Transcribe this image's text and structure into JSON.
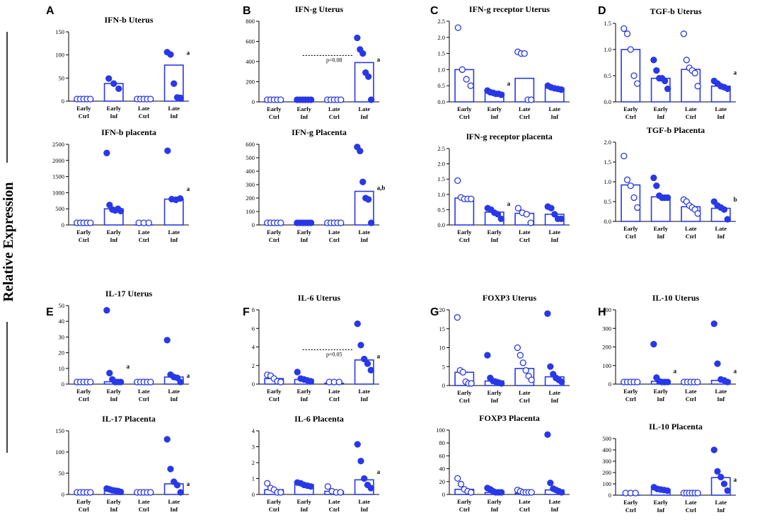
{
  "figure": {
    "ylabel": "Relative Expression",
    "colors": {
      "marker": "#2838e8",
      "axis": "#000000",
      "sigline": "#000000"
    }
  },
  "chart_data": [
    {
      "id": "A1",
      "panel": "A",
      "type": "bar",
      "title": "IFN-b Uterus",
      "ylim": [
        0,
        150
      ],
      "yticks": [
        0,
        50,
        100,
        150
      ],
      "categories": [
        [
          "Early",
          "Ctrl"
        ],
        [
          "Early",
          "Inf"
        ],
        [
          "Late",
          "Ctrl"
        ],
        [
          "Late",
          "Inf"
        ]
      ],
      "values": [
        0,
        38,
        0,
        78
      ],
      "points": [
        [
          0,
          0,
          0,
          0,
          0
        ],
        [
          49,
          38,
          27
        ],
        [
          0,
          0,
          0,
          0,
          0
        ],
        [
          106,
          101,
          38,
          8,
          7
        ]
      ],
      "annotations": [
        {
          "cat": 3,
          "text": "a",
          "y": 100
        }
      ]
    },
    {
      "id": "A2",
      "panel": "",
      "type": "bar",
      "title": "IFN-b placenta",
      "ylim": [
        0,
        2500
      ],
      "yticks": [
        0,
        500,
        1000,
        1500,
        2000,
        2500
      ],
      "categories": [
        [
          "Early",
          "Ctrl"
        ],
        [
          "Early",
          "Inf"
        ],
        [
          "Late",
          "Ctrl"
        ],
        [
          "Late",
          "Inf"
        ]
      ],
      "values": [
        0,
        500,
        0,
        800
      ],
      "points": [
        [
          0,
          0,
          0,
          0,
          0
        ],
        [
          2230,
          620,
          480,
          450,
          500,
          430
        ],
        [
          0,
          0,
          0
        ],
        [
          2300,
          800,
          780,
          820
        ]
      ],
      "annotations": [
        {
          "cat": 3,
          "text": "a",
          "y": 1050
        }
      ]
    },
    {
      "id": "B1",
      "panel": "B",
      "type": "bar",
      "title": "IFN-g Uterus",
      "ylim": [
        0,
        800
      ],
      "yticks": [
        0,
        200,
        400,
        600,
        800
      ],
      "categories": [
        [
          "Early",
          "Ctrl"
        ],
        [
          "Early",
          "Inf"
        ],
        [
          "Late",
          "Ctrl"
        ],
        [
          "Late",
          "Inf"
        ]
      ],
      "values": [
        0,
        0,
        0,
        390
      ],
      "points": [
        [
          0,
          0,
          0,
          0,
          0
        ],
        [
          0,
          0,
          0,
          0,
          0,
          0
        ],
        [
          0,
          0,
          0,
          0,
          0
        ],
        [
          635,
          520,
          480,
          290,
          250,
          10
        ]
      ],
      "annotations": [
        {
          "cat": 3,
          "text": "a",
          "y": 400
        }
      ],
      "sig": {
        "from": 1,
        "to": 3,
        "y": 460,
        "text": "p=0.08"
      }
    },
    {
      "id": "B2",
      "panel": "",
      "type": "bar",
      "title": "IFN-g Placenta",
      "ylim": [
        0,
        600
      ],
      "yticks": [
        0,
        100,
        200,
        300,
        400,
        500,
        600
      ],
      "categories": [
        [
          "Early",
          "Ctrl"
        ],
        [
          "Early",
          "Inf"
        ],
        [
          "Late",
          "Ctrl"
        ],
        [
          "Late",
          "Inf"
        ]
      ],
      "values": [
        0,
        0,
        0,
        250
      ],
      "points": [
        [
          0,
          0,
          0,
          0,
          0
        ],
        [
          0,
          0,
          0,
          0,
          0,
          0
        ],
        [
          0,
          0,
          0,
          0,
          0
        ],
        [
          580,
          550,
          320,
          200,
          190,
          10
        ]
      ],
      "annotations": [
        {
          "cat": 3,
          "text": "a,b",
          "y": 260
        }
      ]
    },
    {
      "id": "C1",
      "panel": "C",
      "type": "bar",
      "title": "IFN-g receptor Uterus",
      "ylim": [
        0,
        2.5
      ],
      "yticks": [
        0,
        0.5,
        1.0,
        1.5,
        2.0,
        2.5
      ],
      "categories": [
        [
          "Early",
          "Ctrl"
        ],
        [
          "Early",
          "Inf"
        ],
        [
          "Late",
          "Ctrl"
        ],
        [
          "Late",
          "Inf"
        ]
      ],
      "values": [
        1.0,
        0.28,
        0.73,
        0.43
      ],
      "points": [
        [
          2.3,
          1.0,
          0.7,
          0.5
        ],
        [
          0.35,
          0.3,
          0.28,
          0.25,
          0.25,
          0.22
        ],
        [
          1.55,
          1.5,
          1.5,
          0.02,
          0.02
        ],
        [
          0.5,
          0.45,
          0.42,
          0.4,
          0.38
        ]
      ],
      "annotations": [
        {
          "cat": 1,
          "text": "a",
          "y": 0.5
        }
      ]
    },
    {
      "id": "C2",
      "panel": "",
      "type": "bar",
      "title": "lFN-g receptor placenta",
      "ylim": [
        0,
        2.5
      ],
      "yticks": [
        0,
        0.5,
        1.0,
        1.5,
        2.0,
        2.5
      ],
      "categories": [
        [
          "Early",
          "Ctrl"
        ],
        [
          "Early",
          "Inf"
        ],
        [
          "Late",
          "Ctrl"
        ],
        [
          "Late",
          "Inf"
        ]
      ],
      "values": [
        0.88,
        0.42,
        0.38,
        0.35
      ],
      "points": [
        [
          1.45,
          0.9,
          0.85,
          0.85,
          0.85
        ],
        [
          0.55,
          0.5,
          0.4,
          0.35,
          0.2
        ],
        [
          0.55,
          0.4,
          0.35,
          0.02
        ],
        [
          0.6,
          0.55,
          0.35,
          0.2,
          0.2
        ]
      ],
      "annotations": [
        {
          "cat": 1,
          "text": "a",
          "y": 0.62
        }
      ]
    },
    {
      "id": "D1",
      "panel": "D",
      "type": "bar",
      "title": "TGF-b Uterus",
      "ylim": [
        0,
        1.5
      ],
      "yticks": [
        0,
        0.5,
        1.0,
        1.5
      ],
      "categories": [
        [
          "Early",
          "Ctrl"
        ],
        [
          "Early",
          "Inf"
        ],
        [
          "Late",
          "Ctrl"
        ],
        [
          "Late",
          "Inf"
        ]
      ],
      "values": [
        1.0,
        0.45,
        0.62,
        0.3
      ],
      "points": [
        [
          1.4,
          1.3,
          1.0,
          0.5,
          0.35
        ],
        [
          0.8,
          0.6,
          0.45,
          0.45,
          0.4,
          0.25
        ],
        [
          1.3,
          0.8,
          0.65,
          0.6,
          0.55,
          0.3
        ],
        [
          0.4,
          0.35,
          0.3,
          0.28,
          0.25
        ]
      ],
      "annotations": [
        {
          "cat": 3,
          "text": "a",
          "y": 0.52
        }
      ]
    },
    {
      "id": "D2",
      "panel": "",
      "type": "bar",
      "title": "TGF-b Placenta",
      "ylim": [
        0,
        2.0
      ],
      "yticks": [
        0,
        0.5,
        1.0,
        1.5,
        2.0
      ],
      "categories": [
        [
          "Early",
          "Ctrl"
        ],
        [
          "Early",
          "Inf"
        ],
        [
          "Late",
          "Ctrl"
        ],
        [
          "Late",
          "Inf"
        ]
      ],
      "values": [
        0.92,
        0.62,
        0.37,
        0.33
      ],
      "points": [
        [
          1.65,
          1.05,
          0.9,
          0.6,
          0.35
        ],
        [
          1.1,
          0.9,
          0.65,
          0.6,
          0.6,
          0.6
        ],
        [
          0.55,
          0.5,
          0.4,
          0.35,
          0.3,
          0.2
        ],
        [
          0.5,
          0.4,
          0.35,
          0.3,
          0.05
        ]
      ],
      "annotations": [
        {
          "cat": 3,
          "text": "b",
          "y": 0.5
        }
      ]
    },
    {
      "id": "E1",
      "panel": "E",
      "type": "bar",
      "title": "IL-17 Uterus",
      "ylim": [
        0,
        50
      ],
      "yticks": [
        0,
        10,
        20,
        30,
        40,
        50
      ],
      "categories": [
        [
          "Early",
          "Ctrl"
        ],
        [
          "Early",
          "Inf"
        ],
        [
          "Late",
          "Ctrl"
        ],
        [
          "Late",
          "Inf"
        ]
      ],
      "values": [
        0,
        1.5,
        0,
        4.5
      ],
      "points": [
        [
          0,
          0,
          0,
          0,
          0
        ],
        [
          47,
          7,
          3,
          1,
          0.5,
          0.3
        ],
        [
          0,
          0,
          0,
          0,
          0
        ],
        [
          28,
          6,
          4.5,
          4,
          0.3
        ]
      ],
      "annotations": [
        {
          "cat": 1,
          "text": "a",
          "y": 10
        },
        {
          "cat": 3,
          "text": "a",
          "y": 4
        }
      ]
    },
    {
      "id": "E2",
      "panel": "",
      "type": "bar",
      "title": "IL-17 Placenta",
      "ylim": [
        0,
        150
      ],
      "yticks": [
        0,
        50,
        100,
        150
      ],
      "categories": [
        [
          "Early",
          "Ctrl"
        ],
        [
          "Early",
          "Inf"
        ],
        [
          "Late",
          "Ctrl"
        ],
        [
          "Late",
          "Inf"
        ]
      ],
      "values": [
        0,
        8,
        0,
        25
      ],
      "points": [
        [
          0,
          0,
          0,
          0,
          0
        ],
        [
          14,
          12,
          10,
          9,
          8,
          6
        ],
        [
          0,
          0,
          0,
          0,
          0
        ],
        [
          130,
          60,
          30,
          22,
          5
        ]
      ],
      "annotations": [
        {
          "cat": 3,
          "text": "a",
          "y": 20
        }
      ]
    },
    {
      "id": "F1",
      "panel": "F",
      "type": "bar",
      "title": "IL-6 Uterus",
      "ylim": [
        0,
        8
      ],
      "yticks": [
        0,
        2,
        4,
        6,
        8
      ],
      "categories": [
        [
          "Early",
          "Ctrl"
        ],
        [
          "Early",
          "Inf"
        ],
        [
          "Late",
          "Ctrl"
        ],
        [
          "Late",
          "Inf"
        ]
      ],
      "values": [
        0.6,
        0.5,
        0.1,
        2.6
      ],
      "points": [
        [
          1.0,
          0.9,
          0.6,
          0.3,
          0.2
        ],
        [
          1.3,
          0.6,
          0.5,
          0.4,
          0.3
        ],
        [
          0.2,
          0.15,
          0.1
        ],
        [
          6.5,
          4.2,
          2.7,
          2.2,
          1.5
        ]
      ],
      "annotations": [
        {
          "cat": 3,
          "text": "a",
          "y": 2.8
        }
      ],
      "sig": {
        "from": 1,
        "to": 3,
        "y": 3.7,
        "text": "p=0.05"
      }
    },
    {
      "id": "F2",
      "panel": "",
      "type": "bar",
      "title": "IL-6 Placenta",
      "ylim": [
        0,
        4
      ],
      "yticks": [
        0,
        1,
        2,
        3,
        4
      ],
      "categories": [
        [
          "Early",
          "Ctrl"
        ],
        [
          "Early",
          "Inf"
        ],
        [
          "Late",
          "Ctrl"
        ],
        [
          "Late",
          "Inf"
        ]
      ],
      "values": [
        0.3,
        0.62,
        0.2,
        0.92
      ],
      "points": [
        [
          0.7,
          0.4,
          0.3,
          0.1,
          0.05
        ],
        [
          0.75,
          0.7,
          0.6,
          0.55,
          0.5
        ],
        [
          0.5,
          0.2,
          0.1,
          0.05
        ],
        [
          3.15,
          2.1,
          1.0,
          0.6,
          0.4
        ]
      ],
      "annotations": [
        {
          "cat": 3,
          "text": "a",
          "y": 1.3
        }
      ]
    },
    {
      "id": "G1",
      "panel": "G",
      "type": "bar",
      "title": "FOXP3 Uterus",
      "ylim": [
        0,
        20
      ],
      "yticks": [
        0,
        5,
        10,
        15,
        20
      ],
      "categories": [
        [
          "Early",
          "Ctrl"
        ],
        [
          "Early",
          "Inf"
        ],
        [
          "Late",
          "Ctrl"
        ],
        [
          "Late",
          "Inf"
        ]
      ],
      "values": [
        3.5,
        1.2,
        4.5,
        2.3
      ],
      "points": [
        [
          18,
          4,
          3.5,
          1,
          0.5,
          0.3
        ],
        [
          8,
          2,
          1.2,
          1,
          0.8,
          0.5
        ],
        [
          10,
          8,
          6,
          4,
          2.5,
          1.5
        ],
        [
          19,
          5,
          3,
          2,
          1.5,
          1
        ]
      ],
      "annotations": []
    },
    {
      "id": "G2",
      "panel": "",
      "type": "bar",
      "title": "FOXP3 Placenta",
      "ylim": [
        0,
        100
      ],
      "yticks": [
        0,
        20,
        40,
        60,
        80,
        100
      ],
      "categories": [
        [
          "Early",
          "Ctrl"
        ],
        [
          "Early",
          "Inf"
        ],
        [
          "Late",
          "Ctrl"
        ],
        [
          "Late",
          "Inf"
        ]
      ],
      "values": [
        8,
        3,
        2,
        7
      ],
      "points": [
        [
          25,
          16,
          8,
          5,
          3
        ],
        [
          10,
          8,
          5,
          3,
          2,
          1
        ],
        [
          7,
          5,
          3,
          2,
          1,
          0.5
        ],
        [
          93,
          18,
          9,
          7,
          5,
          3
        ]
      ],
      "annotations": []
    },
    {
      "id": "H1",
      "panel": "H",
      "type": "bar",
      "title": "IL-10 Uterus",
      "ylim": [
        0,
        400
      ],
      "yticks": [
        0,
        100,
        200,
        300,
        400
      ],
      "categories": [
        [
          "Early",
          "Ctrl"
        ],
        [
          "Early",
          "Inf"
        ],
        [
          "Late",
          "Ctrl"
        ],
        [
          "Late",
          "Inf"
        ]
      ],
      "values": [
        0,
        15,
        0,
        20
      ],
      "points": [
        [
          0,
          0,
          0,
          0,
          0
        ],
        [
          215,
          35,
          15,
          10,
          5,
          2
        ],
        [
          0,
          0,
          0,
          0,
          0
        ],
        [
          325,
          110,
          25,
          20,
          5
        ]
      ],
      "annotations": [
        {
          "cat": 1,
          "text": "a",
          "y": 60
        },
        {
          "cat": 3,
          "text": "a",
          "y": 60
        }
      ]
    },
    {
      "id": "H2",
      "panel": "",
      "type": "bar",
      "title": "IL-10 Placenta",
      "ylim": [
        0,
        500
      ],
      "yticks": [
        0,
        100,
        200,
        300,
        400,
        500
      ],
      "categories": [
        [
          "Early",
          "Ctrl"
        ],
        [
          "Early",
          "Inf"
        ],
        [
          "Late",
          "Ctrl"
        ],
        [
          "Late",
          "Inf"
        ]
      ],
      "values": [
        0,
        50,
        0,
        155
      ],
      "points": [
        [
          0,
          0,
          0
        ],
        [
          70,
          55,
          50,
          45,
          40
        ],
        [
          0,
          0,
          0,
          0,
          0,
          0
        ],
        [
          400,
          210,
          160,
          100,
          40
        ]
      ],
      "annotations": [
        {
          "cat": 3,
          "text": "a",
          "y": 120
        }
      ]
    }
  ]
}
